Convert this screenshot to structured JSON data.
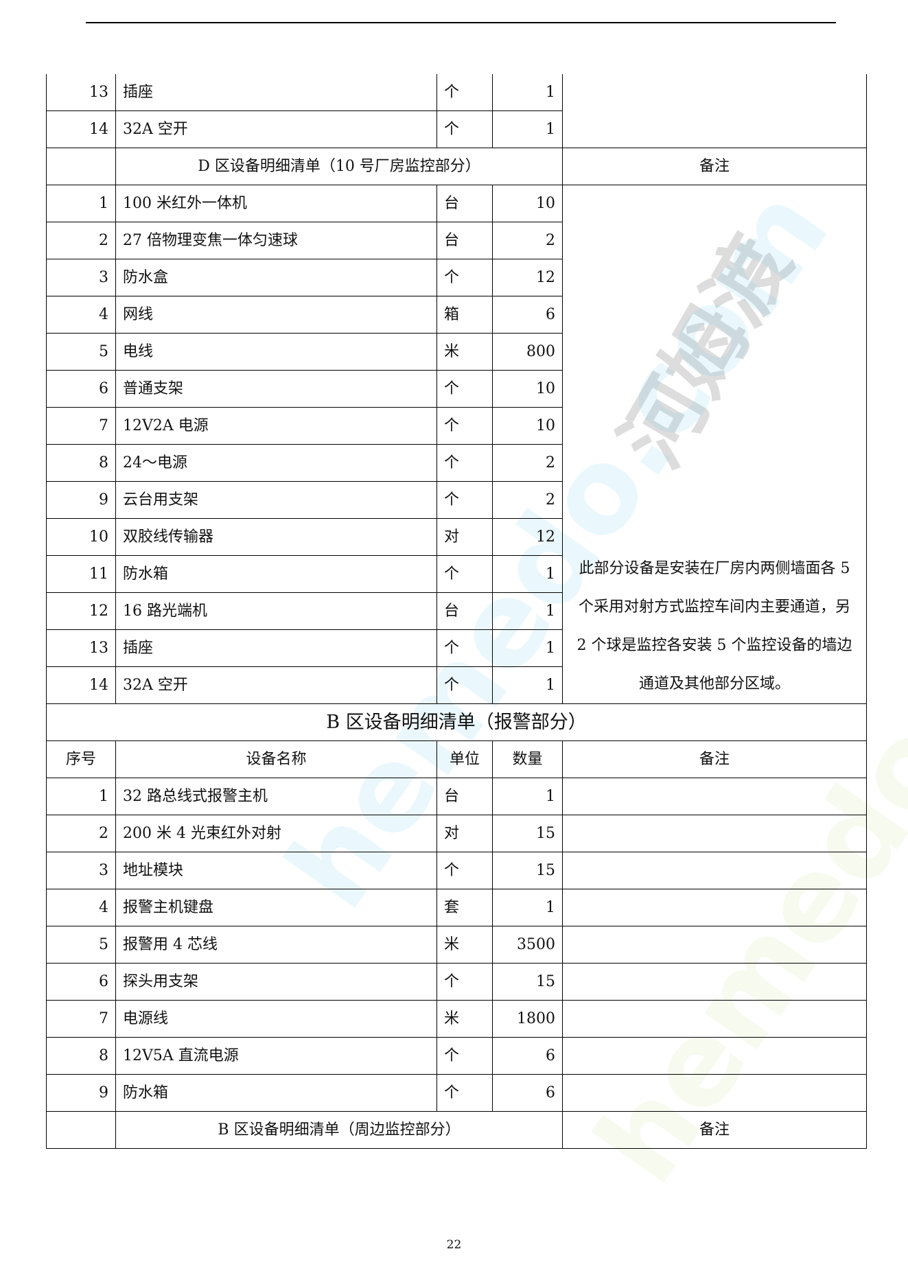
{
  "top_rows": [
    {
      "no": "13",
      "name": "插座",
      "unit": "个",
      "qty": "1"
    },
    {
      "no": "14",
      "name": "32A 空开",
      "unit": "个",
      "qty": "1"
    }
  ],
  "section_d": {
    "title": "D 区设备明细清单（10 号厂房监控部分）",
    "remark_header": "备注",
    "rows": [
      {
        "no": "1",
        "name": "100 米红外一体机",
        "unit": "台",
        "qty": "10"
      },
      {
        "no": "2",
        "name": "27 倍物理变焦一体匀速球",
        "unit": "台",
        "qty": "2"
      },
      {
        "no": "3",
        "name": "防水盒",
        "unit": "个",
        "qty": "12"
      },
      {
        "no": "4",
        "name": "网线",
        "unit": "箱",
        "qty": "6"
      },
      {
        "no": "5",
        "name": "电线",
        "unit": "米",
        "qty": "800"
      },
      {
        "no": "6",
        "name": "普通支架",
        "unit": "个",
        "qty": "10"
      },
      {
        "no": "7",
        "name": "12V2A 电源",
        "unit": "个",
        "qty": "10"
      },
      {
        "no": "8",
        "name": "24～电源",
        "unit": "个",
        "qty": "2"
      },
      {
        "no": "9",
        "name": "云台用支架",
        "unit": "个",
        "qty": "2"
      },
      {
        "no": "10",
        "name": "双胶线传输器",
        "unit": "对",
        "qty": "12"
      },
      {
        "no": "11",
        "name": "防水箱",
        "unit": "个",
        "qty": "1"
      },
      {
        "no": "12",
        "name": "16 路光端机",
        "unit": "台",
        "qty": "1"
      },
      {
        "no": "13",
        "name": "插座",
        "unit": "个",
        "qty": "1"
      },
      {
        "no": "14",
        "name": "32A 空开",
        "unit": "个",
        "qty": "1"
      }
    ],
    "remark": "此部分设备是安装在厂房内两侧墙面各 5 个采用对射方式监控车间内主要通道，另 2 个球是监控各安装 5 个监控设备的墙边通道及其他部分区域。"
  },
  "section_b_alarm": {
    "title": "B 区设备明细清单（报警部分）",
    "headers": {
      "no": "序号",
      "name": "设备名称",
      "unit": "单位",
      "qty": "数量",
      "remark": "备注"
    },
    "rows": [
      {
        "no": "1",
        "name": "32 路总线式报警主机",
        "unit": "台",
        "qty": "1"
      },
      {
        "no": "2",
        "name": "200 米 4 光束红外对射",
        "unit": "对",
        "qty": "15"
      },
      {
        "no": "3",
        "name": "地址模块",
        "unit": "个",
        "qty": "15"
      },
      {
        "no": "4",
        "name": "报警主机键盘",
        "unit": "套",
        "qty": "1"
      },
      {
        "no": "5",
        "name": "报警用 4 芯线",
        "unit": "米",
        "qty": "3500"
      },
      {
        "no": "6",
        "name": "探头用支架",
        "unit": "个",
        "qty": "15"
      },
      {
        "no": "7",
        "name": "电源线",
        "unit": "米",
        "qty": "1800"
      },
      {
        "no": "8",
        "name": "12V5A 直流电源",
        "unit": "个",
        "qty": "6"
      },
      {
        "no": "9",
        "name": "防水箱",
        "unit": "个",
        "qty": "6"
      }
    ]
  },
  "section_b_perimeter": {
    "title": "B 区设备明细清单（周边监控部分）",
    "remark_header": "备注"
  },
  "watermark": {
    "brand": "河姆渡",
    "site": "hemedo.com"
  },
  "page_number": "22"
}
